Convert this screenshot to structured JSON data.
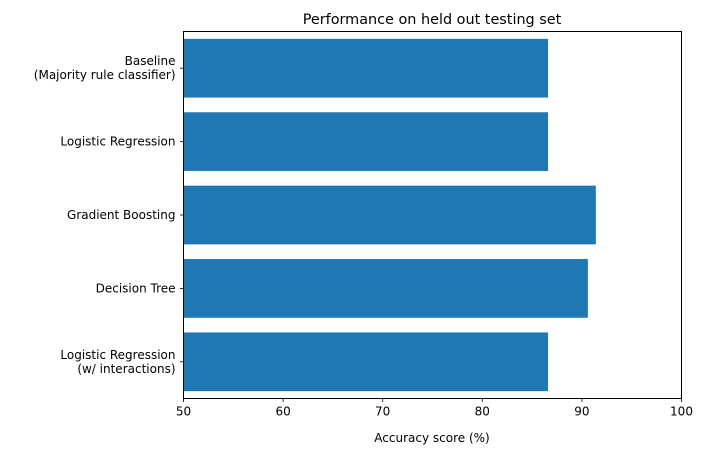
{
  "chart_data": {
    "type": "bar",
    "orientation": "horizontal",
    "title": "Performance on held out testing set",
    "xlabel": "Accuracy score (%)",
    "ylabel": "",
    "xlim": [
      50,
      100
    ],
    "xticks": [
      "50",
      "60",
      "70",
      "80",
      "90",
      "100"
    ],
    "categories": [
      [
        "Baseline",
        "(Majority rule classifier)"
      ],
      [
        "Logistic Regression"
      ],
      [
        "Gradient Boosting"
      ],
      [
        "Decision Tree"
      ],
      [
        "Logistic Regression",
        "(w/ interactions)"
      ]
    ],
    "values": [
      86.6,
      86.6,
      91.4,
      90.6,
      86.6
    ],
    "bar_color": "#1f77b4",
    "grid": false,
    "legend": "none"
  }
}
